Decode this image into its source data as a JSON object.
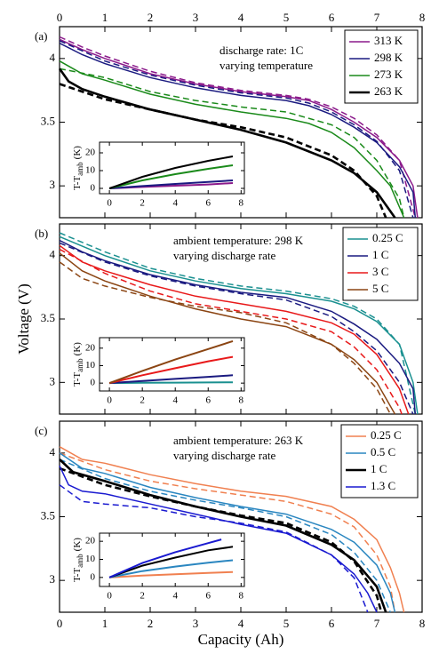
{
  "chart_data": [
    {
      "type": "line",
      "panel_label": "(a)",
      "annotation": [
        "discharge rate: 1C",
        "varying temperature"
      ],
      "xlim": [
        0,
        8
      ],
      "xticks": [
        0,
        1,
        2,
        3,
        4,
        5,
        6,
        7,
        8
      ],
      "xtick_labels": "top",
      "ylim": [
        2.75,
        4.25
      ],
      "yticks": [
        3,
        3.5,
        4
      ],
      "legend": "upper right",
      "series": [
        {
          "name": "313 K",
          "color": "#8b1a8b",
          "width": 1.5,
          "x": [
            0,
            0.5,
            1,
            2,
            3,
            4,
            5,
            5.5,
            6,
            6.5,
            7,
            7.5,
            7.8,
            7.9
          ],
          "values": [
            4.15,
            4.07,
            4.0,
            3.88,
            3.8,
            3.74,
            3.7,
            3.67,
            3.6,
            3.5,
            3.38,
            3.2,
            3.0,
            2.75
          ],
          "dashed_x": [
            0,
            0.5,
            1,
            2,
            3,
            4,
            5,
            5.5,
            6,
            6.5,
            7,
            7.5,
            7.85
          ],
          "dashed_values": [
            4.17,
            4.09,
            4.02,
            3.9,
            3.81,
            3.75,
            3.71,
            3.68,
            3.62,
            3.53,
            3.4,
            3.2,
            2.75
          ]
        },
        {
          "name": "298 K",
          "color": "#1a1a80",
          "width": 1.5,
          "x": [
            0,
            0.5,
            1,
            2,
            3,
            4,
            5,
            5.5,
            6,
            6.5,
            7,
            7.5,
            7.8,
            7.85
          ],
          "values": [
            4.12,
            4.03,
            3.96,
            3.85,
            3.77,
            3.71,
            3.67,
            3.63,
            3.56,
            3.46,
            3.34,
            3.15,
            2.95,
            2.75
          ],
          "dashed_x": [
            0,
            0.5,
            1,
            2,
            3,
            4,
            5,
            5.5,
            6,
            6.5,
            7,
            7.5,
            7.8
          ],
          "dashed_values": [
            4.14,
            4.06,
            3.98,
            3.87,
            3.79,
            3.73,
            3.69,
            3.65,
            3.58,
            3.48,
            3.35,
            3.12,
            2.75
          ]
        },
        {
          "name": "273 K",
          "color": "#1a8a1a",
          "width": 1.5,
          "x": [
            0,
            0.3,
            0.5,
            1,
            2,
            3,
            4,
            5,
            5.5,
            6,
            6.5,
            7,
            7.3,
            7.6
          ],
          "values": [
            3.98,
            3.92,
            3.88,
            3.83,
            3.72,
            3.64,
            3.58,
            3.53,
            3.49,
            3.42,
            3.3,
            3.12,
            3.0,
            2.75
          ],
          "dashed_x": [
            0,
            1,
            2,
            3,
            4,
            5,
            6,
            6.5,
            7,
            7.5,
            7.6
          ],
          "dashed_values": [
            3.92,
            3.85,
            3.74,
            3.67,
            3.62,
            3.58,
            3.48,
            3.38,
            3.2,
            2.9,
            2.75
          ]
        },
        {
          "name": "263 K",
          "color": "#000000",
          "width": 2.6,
          "x": [
            0,
            0.2,
            0.5,
            1,
            2,
            3,
            4,
            5,
            6,
            6.5,
            7,
            7.3,
            7.4
          ],
          "values": [
            3.92,
            3.82,
            3.76,
            3.7,
            3.6,
            3.52,
            3.44,
            3.34,
            3.2,
            3.1,
            2.95,
            2.8,
            2.75
          ],
          "dashed_x": [
            0,
            0.5,
            1,
            2,
            3,
            4,
            5,
            6,
            6.5,
            7,
            7.2
          ],
          "dashed_values": [
            3.8,
            3.74,
            3.68,
            3.6,
            3.52,
            3.46,
            3.38,
            3.24,
            3.12,
            2.92,
            2.75
          ]
        }
      ],
      "inset": {
        "type": "line",
        "ylabel": "T-T",
        "ylabel_sub": "amb",
        "ylabel_unit": "(K)",
        "xlim": [
          -0.6,
          8.2
        ],
        "xticks": [
          0,
          2,
          4,
          6,
          8
        ],
        "ylim": [
          -3,
          26
        ],
        "yticks": [
          0,
          10,
          20
        ],
        "series": [
          {
            "color": "#8b1a8b",
            "x": [
              0,
              2,
              4,
              6,
              7.5
            ],
            "values": [
              0,
              0.8,
              1.5,
              2.2,
              3
            ]
          },
          {
            "color": "#1a1a80",
            "x": [
              0,
              2,
              4,
              6,
              7.5
            ],
            "values": [
              0,
              1.3,
              2.5,
              3.6,
              4.5
            ]
          },
          {
            "color": "#1a8a1a",
            "x": [
              0,
              2,
              4,
              6,
              7.5
            ],
            "values": [
              0,
              4.5,
              8,
              11,
              13
            ]
          },
          {
            "color": "#000000",
            "x": [
              0,
              2,
              4,
              6,
              7.5
            ],
            "values": [
              0,
              6.5,
              11.5,
              15.5,
              18
            ]
          }
        ]
      }
    },
    {
      "type": "line",
      "panel_label": "(b)",
      "ylabel": "Voltage (V)",
      "annotation": [
        "ambient temperature: 298 K",
        "varying discharge rate"
      ],
      "xlim": [
        0,
        8
      ],
      "xticks": [
        0,
        1,
        2,
        3,
        4,
        5,
        6,
        7,
        8
      ],
      "xtick_labels": "none",
      "ylim": [
        2.75,
        4.25
      ],
      "yticks": [
        3,
        3.5,
        4
      ],
      "legend": "upper right",
      "series": [
        {
          "name": "0.25 C",
          "color": "#1a9090",
          "width": 1.5,
          "x": [
            0,
            1,
            2,
            3,
            4,
            5,
            6,
            6.5,
            7,
            7.5,
            7.8,
            7.9
          ],
          "values": [
            4.15,
            4.0,
            3.88,
            3.8,
            3.74,
            3.7,
            3.64,
            3.58,
            3.48,
            3.3,
            3.0,
            2.75
          ],
          "dashed_x": [
            0,
            1,
            2,
            3,
            4,
            5,
            6,
            6.5,
            7,
            7.5,
            7.85
          ],
          "dashed_values": [
            4.18,
            4.03,
            3.9,
            3.82,
            3.76,
            3.72,
            3.66,
            3.6,
            3.5,
            3.3,
            2.75
          ]
        },
        {
          "name": "1 C",
          "color": "#1a1a80",
          "width": 1.5,
          "x": [
            0,
            0.5,
            1,
            2,
            3,
            4,
            5,
            6,
            6.5,
            7,
            7.5,
            7.8,
            7.85
          ],
          "values": [
            4.12,
            4.03,
            3.96,
            3.85,
            3.77,
            3.71,
            3.67,
            3.56,
            3.46,
            3.34,
            3.15,
            2.95,
            2.75
          ],
          "dashed_x": [
            0,
            1,
            2,
            3,
            4,
            5,
            6,
            6.5,
            7,
            7.5,
            7.8
          ],
          "dashed_values": [
            4.1,
            3.95,
            3.84,
            3.76,
            3.7,
            3.65,
            3.52,
            3.4,
            3.25,
            3.0,
            2.75
          ]
        },
        {
          "name": "3 C",
          "color": "#e8191a",
          "width": 1.5,
          "x": [
            0,
            0.5,
            1,
            2,
            3,
            4,
            5,
            6,
            6.5,
            7,
            7.5,
            7.7
          ],
          "values": [
            4.08,
            3.95,
            3.88,
            3.77,
            3.68,
            3.62,
            3.56,
            3.47,
            3.38,
            3.22,
            2.95,
            2.75
          ],
          "dashed_x": [
            0,
            1,
            2,
            3,
            4,
            5,
            6,
            6.5,
            7,
            7.5,
            7.55
          ],
          "dashed_values": [
            4.05,
            3.86,
            3.72,
            3.62,
            3.56,
            3.5,
            3.4,
            3.28,
            3.1,
            2.8,
            2.75
          ]
        },
        {
          "name": "5 C",
          "color": "#8b4513",
          "width": 1.5,
          "x": [
            0,
            0.5,
            1,
            2,
            3,
            4,
            5,
            6,
            6.5,
            7,
            7.4
          ],
          "values": [
            4.02,
            3.88,
            3.8,
            3.68,
            3.58,
            3.5,
            3.44,
            3.3,
            3.18,
            3.0,
            2.75
          ],
          "dashed_x": [
            0,
            0.5,
            1,
            2,
            3,
            4,
            5,
            6,
            6.5,
            7,
            7.3
          ],
          "dashed_values": [
            3.95,
            3.82,
            3.76,
            3.67,
            3.6,
            3.55,
            3.47,
            3.3,
            3.15,
            2.95,
            2.75
          ]
        }
      ],
      "inset": {
        "type": "line",
        "ylabel": "T-T",
        "ylabel_sub": "amb",
        "ylabel_unit": "(K)",
        "xlim": [
          -0.6,
          8.2
        ],
        "xticks": [
          0,
          2,
          4,
          6,
          8
        ],
        "ylim": [
          -4.5,
          26
        ],
        "yticks": [
          0,
          10,
          20
        ],
        "series": [
          {
            "color": "#1a9090",
            "x": [
              0,
              2,
              4,
              6,
              7.5
            ],
            "values": [
              0,
              0.2,
              0.3,
              0.4,
              0.5
            ]
          },
          {
            "color": "#1a1a80",
            "x": [
              0,
              2,
              4,
              6,
              7.5
            ],
            "values": [
              0,
              1.2,
              2.4,
              3.6,
              4.5
            ]
          },
          {
            "color": "#e8191a",
            "x": [
              0,
              2,
              4,
              6,
              7.5
            ],
            "values": [
              0,
              4.5,
              8.5,
              12.5,
              15
            ]
          },
          {
            "color": "#8b4513",
            "x": [
              0,
              2,
              4,
              6,
              7.5
            ],
            "values": [
              0,
              7,
              13.5,
              19.5,
              24
            ]
          }
        ]
      }
    },
    {
      "type": "line",
      "panel_label": "(c)",
      "xlabel": "Capacity (Ah)",
      "annotation": [
        "ambient temperature: 263 K",
        "varying discharge rate"
      ],
      "xlim": [
        0,
        8
      ],
      "xticks": [
        0,
        1,
        2,
        3,
        4,
        5,
        6,
        7,
        8
      ],
      "xtick_labels": "bottom",
      "ylim": [
        2.75,
        4.25
      ],
      "yticks": [
        3,
        3.5,
        4
      ],
      "legend": "upper right",
      "series": [
        {
          "name": "0.25 C",
          "color": "#f08050",
          "width": 1.5,
          "x": [
            0,
            0.5,
            1,
            2,
            3,
            4,
            5,
            6,
            6.5,
            7,
            7.3,
            7.5,
            7.6
          ],
          "values": [
            4.05,
            3.95,
            3.92,
            3.83,
            3.76,
            3.7,
            3.66,
            3.58,
            3.48,
            3.32,
            3.1,
            2.9,
            2.75
          ],
          "dashed_x": [
            0,
            1,
            2,
            3,
            4,
            5,
            6,
            6.5,
            7,
            7.3,
            7.4
          ],
          "dashed_values": [
            4.0,
            3.87,
            3.78,
            3.72,
            3.67,
            3.62,
            3.52,
            3.42,
            3.2,
            2.95,
            2.75
          ]
        },
        {
          "name": "0.5 C",
          "color": "#2a86c0",
          "width": 1.5,
          "x": [
            0,
            0.5,
            1,
            2,
            3,
            4,
            5,
            6,
            6.5,
            7,
            7.3,
            7.4
          ],
          "values": [
            4.0,
            3.88,
            3.84,
            3.73,
            3.65,
            3.58,
            3.52,
            3.4,
            3.3,
            3.12,
            2.9,
            2.75
          ],
          "dashed_x": [
            0,
            1,
            2,
            3,
            4,
            5,
            6,
            6.5,
            7,
            7.3
          ],
          "dashed_values": [
            3.95,
            3.8,
            3.7,
            3.63,
            3.57,
            3.5,
            3.36,
            3.22,
            3.0,
            2.75
          ]
        },
        {
          "name": "1 C",
          "color": "#000000",
          "width": 2.6,
          "x": [
            0,
            0.3,
            1,
            2,
            3,
            4,
            5,
            6,
            6.5,
            7,
            7.2
          ],
          "values": [
            3.95,
            3.85,
            3.78,
            3.67,
            3.58,
            3.5,
            3.43,
            3.28,
            3.16,
            2.95,
            2.75
          ],
          "dashed_x": [
            0,
            1,
            2,
            3,
            4,
            5,
            6,
            6.5,
            7,
            7.1
          ],
          "dashed_values": [
            3.88,
            3.75,
            3.66,
            3.58,
            3.51,
            3.45,
            3.3,
            3.15,
            2.88,
            2.75
          ]
        },
        {
          "name": "1.3 C",
          "color": "#1a1ad0",
          "width": 1.5,
          "x": [
            0,
            0.2,
            0.5,
            1,
            2,
            3,
            4,
            5,
            6,
            6.5,
            6.8,
            7.0
          ],
          "values": [
            3.9,
            3.75,
            3.7,
            3.68,
            3.6,
            3.52,
            3.44,
            3.37,
            3.2,
            3.05,
            2.9,
            2.75
          ],
          "dashed_x": [
            0,
            0.5,
            1,
            2,
            3,
            4,
            5,
            6,
            6.5,
            6.8
          ],
          "dashed_values": [
            3.75,
            3.62,
            3.6,
            3.57,
            3.5,
            3.45,
            3.38,
            3.2,
            3.02,
            2.75
          ]
        }
      ],
      "inset": {
        "type": "line",
        "ylabel": "T-T",
        "ylabel_sub": "amb",
        "ylabel_unit": "(K)",
        "xlim": [
          -0.6,
          8.2
        ],
        "xticks": [
          0,
          2,
          4,
          6,
          8
        ],
        "ylim": [
          -5,
          24.5
        ],
        "yticks": [
          0,
          10,
          20
        ],
        "series": [
          {
            "color": "#f08050",
            "x": [
              0,
              2,
              4,
              6,
              7.5
            ],
            "values": [
              0,
              1,
              1.8,
              2.5,
              3
            ]
          },
          {
            "color": "#2a86c0",
            "x": [
              0,
              2,
              4,
              6,
              7.5
            ],
            "values": [
              0,
              3.5,
              6,
              8.2,
              9.5
            ]
          },
          {
            "color": "#000000",
            "x": [
              0,
              2,
              4,
              6,
              7.5
            ],
            "values": [
              0,
              6.5,
              11,
              15,
              17
            ]
          },
          {
            "color": "#1a1ad0",
            "x": [
              0,
              2,
              4,
              6,
              6.8
            ],
            "values": [
              0,
              8,
              14,
              19,
              21
            ]
          }
        ]
      }
    }
  ]
}
